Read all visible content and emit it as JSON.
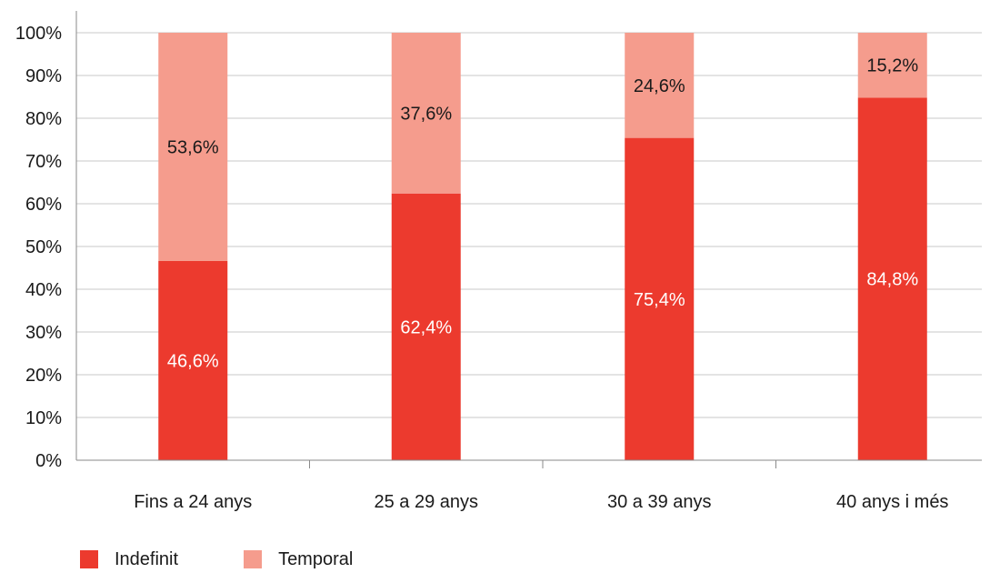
{
  "chart_data": {
    "type": "bar",
    "stacked": true,
    "categories": [
      "Fins a 24 anys",
      "25 a 29 anys",
      "30 a 39 anys",
      "40 anys i més"
    ],
    "series": [
      {
        "name": "Indefinit",
        "values": [
          46.6,
          62.4,
          75.4,
          84.8
        ],
        "labels": [
          "46,6%",
          "62,4%",
          "75,4%",
          "84,8%"
        ],
        "color": "#ec3a2e",
        "label_color": "#ffffff"
      },
      {
        "name": "Temporal",
        "values": [
          53.6,
          37.6,
          24.6,
          15.2
        ],
        "labels": [
          "53,6%",
          "37,6%",
          "24,6%",
          "15,2%"
        ],
        "color": "#f59c8d",
        "label_color": "#1a1a1a"
      }
    ],
    "ylim": [
      0,
      100
    ],
    "yticks": [
      0,
      10,
      20,
      30,
      40,
      50,
      60,
      70,
      80,
      90,
      100
    ],
    "ytick_labels": [
      "0%",
      "10%",
      "20%",
      "30%",
      "40%",
      "50%",
      "60%",
      "70%",
      "80%",
      "90%",
      "100%"
    ],
    "grid": true,
    "legend_position": "bottom-left",
    "title": "",
    "xlabel": "",
    "ylabel": ""
  }
}
